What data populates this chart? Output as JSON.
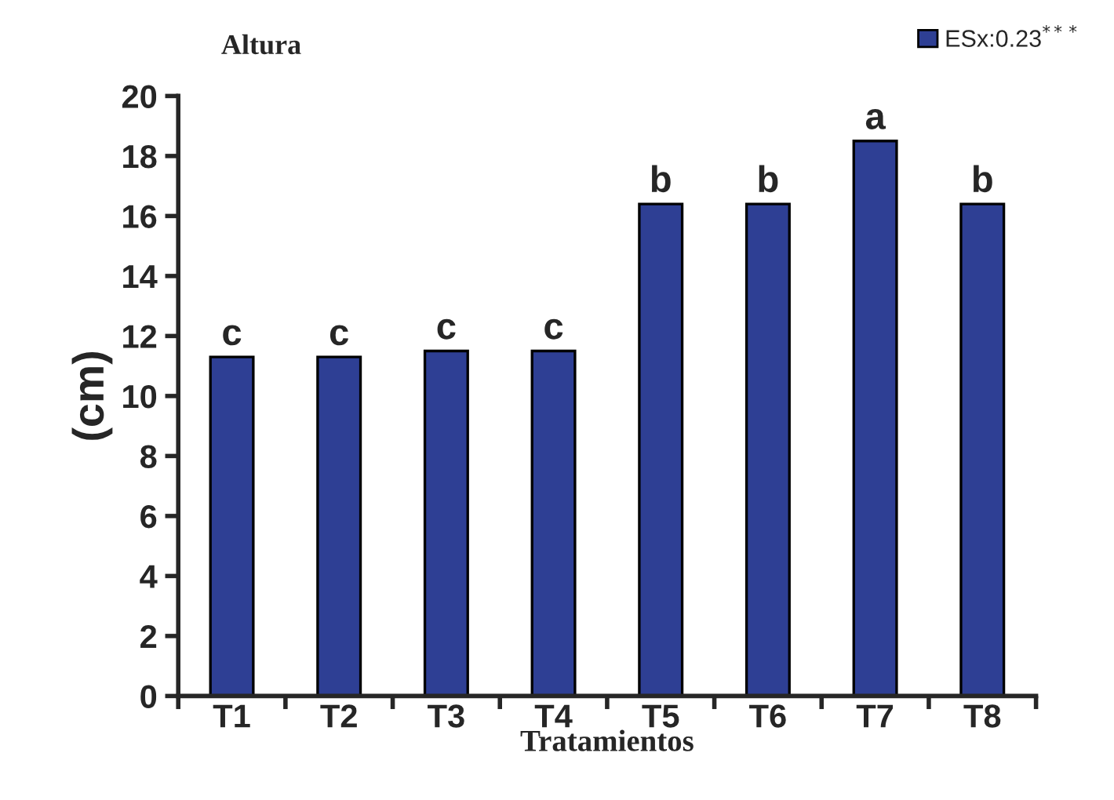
{
  "chart_data": {
    "type": "bar",
    "title": "Altura",
    "xlabel": "Tratamientos",
    "ylabel": "(cm)",
    "categories": [
      "T1",
      "T2",
      "T3",
      "T4",
      "T5",
      "T6",
      "T7",
      "T8"
    ],
    "series": [
      {
        "name": "ESx:0.23$^{***}$",
        "color": "#2e3f94",
        "values": [
          11.3,
          11.3,
          11.5,
          11.5,
          16.4,
          16.4,
          18.5,
          16.4
        ]
      }
    ],
    "ylim": [
      0,
      20
    ],
    "yticks": [
      0,
      2,
      4,
      6,
      8,
      10,
      12,
      14,
      16,
      18,
      20
    ],
    "grid": false,
    "legend": "top right",
    "annotations": [
      {
        "text": "c",
        "x": "T1",
        "y": 11.3
      },
      {
        "text": "c",
        "x": "T2",
        "y": 11.3
      },
      {
        "text": "c",
        "x": "T3",
        "y": 11.5
      },
      {
        "text": "c",
        "x": "T4",
        "y": 11.5
      },
      {
        "text": "b",
        "x": "T5",
        "y": 16.4
      },
      {
        "text": "b",
        "x": "T6",
        "y": 16.4
      },
      {
        "text": "a",
        "x": "T7",
        "y": 18.5
      },
      {
        "text": "b",
        "x": "T8",
        "y": 16.4
      }
    ]
  }
}
